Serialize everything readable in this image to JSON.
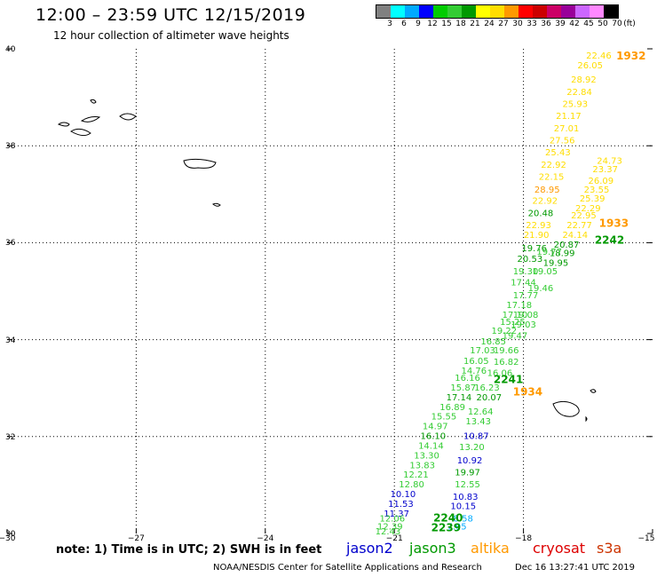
{
  "header": {
    "title": "12:00 – 23:59 UTC 12/15/2019",
    "subtitle": "12 hour collection of altimeter wave heights"
  },
  "colorbar": {
    "unit": "(ft)",
    "bins": [
      {
        "label": "3",
        "color": "#808080"
      },
      {
        "label": "6",
        "color": "#00ffff"
      },
      {
        "label": "9",
        "color": "#00aaff"
      },
      {
        "label": "12",
        "color": "#0000ff"
      },
      {
        "label": "15",
        "color": "#00cc00"
      },
      {
        "label": "18",
        "color": "#33cc33"
      },
      {
        "label": "21",
        "color": "#009900"
      },
      {
        "label": "24",
        "color": "#ffff00"
      },
      {
        "label": "27",
        "color": "#ffdd00"
      },
      {
        "label": "30",
        "color": "#ff9900"
      },
      {
        "label": "33",
        "color": "#ff0000"
      },
      {
        "label": "36",
        "color": "#cc0000"
      },
      {
        "label": "39",
        "color": "#cc0066"
      },
      {
        "label": "42",
        "color": "#990099"
      },
      {
        "label": "45",
        "color": "#cc66ff"
      },
      {
        "label": "50",
        "color": "#ff88ff"
      },
      {
        "label": "70",
        "color": "#000000"
      }
    ]
  },
  "axes": {
    "lat_labels": [
      "40",
      "38",
      "36",
      "34",
      "32",
      "30"
    ],
    "lon_labels": [
      "−30",
      "−27",
      "−24",
      "−21",
      "−18",
      "−15"
    ]
  },
  "colors": {
    "jason2": "#0000cc",
    "jason3": "#009900",
    "altika": "#ff9900",
    "cryosat": "#dd0000",
    "s3a": "#cc3300",
    "grid": "#000000",
    "land": "#000000"
  },
  "track_labels": [
    {
      "text": "1932",
      "color": "#ff9900",
      "lat": 39.78,
      "lon": -15.5
    },
    {
      "text": "1933",
      "color": "#ff9900",
      "lat": 36.33,
      "lon": -15.9
    },
    {
      "text": "2242",
      "color": "#009900",
      "lat": 35.98,
      "lon": -16.0
    },
    {
      "text": "2241",
      "color": "#009900",
      "lat": 33.1,
      "lon": -18.35
    },
    {
      "text": "1934",
      "color": "#ff9900",
      "lat": 32.85,
      "lon": -17.9
    },
    {
      "text": "2240",
      "color": "#009900",
      "lat": 30.25,
      "lon": -19.75
    },
    {
      "text": "2239",
      "color": "#009900",
      "lat": 30.05,
      "lon": -19.8
    }
  ],
  "wave_heights": [
    {
      "value": "22.46",
      "color": "#ffdd00",
      "lat": 39.8,
      "lon": -16.25
    },
    {
      "value": "26.05",
      "color": "#ffdd00",
      "lat": 39.6,
      "lon": -16.45
    },
    {
      "value": "28.92",
      "color": "#ffdd00",
      "lat": 39.3,
      "lon": -16.6
    },
    {
      "value": "22.84",
      "color": "#ffdd00",
      "lat": 39.05,
      "lon": -16.7
    },
    {
      "value": "25.93",
      "color": "#ffdd00",
      "lat": 38.8,
      "lon": -16.8
    },
    {
      "value": "21.17",
      "color": "#ffdd00",
      "lat": 38.55,
      "lon": -16.95
    },
    {
      "value": "27.01",
      "color": "#ffdd00",
      "lat": 38.3,
      "lon": -17.0
    },
    {
      "value": "27.56",
      "color": "#ffdd00",
      "lat": 38.05,
      "lon": -17.1
    },
    {
      "value": "25.43",
      "color": "#ffdd00",
      "lat": 37.8,
      "lon": -17.2
    },
    {
      "value": "24.73",
      "color": "#ffdd00",
      "lat": 37.63,
      "lon": -16.0
    },
    {
      "value": "22.92",
      "color": "#ffdd00",
      "lat": 37.55,
      "lon": -17.3
    },
    {
      "value": "23.37",
      "color": "#ffdd00",
      "lat": 37.45,
      "lon": -16.1
    },
    {
      "value": "22.15",
      "color": "#ffdd00",
      "lat": 37.3,
      "lon": -17.35
    },
    {
      "value": "26.09",
      "color": "#ffdd00",
      "lat": 37.22,
      "lon": -16.2
    },
    {
      "value": "28.95",
      "color": "#ff9900",
      "lat": 37.03,
      "lon": -17.45
    },
    {
      "value": "23.55",
      "color": "#ffdd00",
      "lat": 37.03,
      "lon": -16.3
    },
    {
      "value": "25.39",
      "color": "#ffdd00",
      "lat": 36.85,
      "lon": -16.4
    },
    {
      "value": "22.92",
      "color": "#ffdd00",
      "lat": 36.8,
      "lon": -17.5
    },
    {
      "value": "22.29",
      "color": "#ffdd00",
      "lat": 36.65,
      "lon": -16.5
    },
    {
      "value": "20.48",
      "color": "#009900",
      "lat": 36.55,
      "lon": -17.6
    },
    {
      "value": "22.95",
      "color": "#ffdd00",
      "lat": 36.5,
      "lon": -16.6
    },
    {
      "value": "22.93",
      "color": "#ffdd00",
      "lat": 36.3,
      "lon": -17.65
    },
    {
      "value": "22.77",
      "color": "#ffdd00",
      "lat": 36.3,
      "lon": -16.7
    },
    {
      "value": "21.90",
      "color": "#ffdd00",
      "lat": 36.1,
      "lon": -17.7
    },
    {
      "value": "24.14",
      "color": "#ffdd00",
      "lat": 36.1,
      "lon": -16.8
    },
    {
      "value": "20.87",
      "color": "#009900",
      "lat": 35.9,
      "lon": -17.0
    },
    {
      "value": "19.76",
      "color": "#009900",
      "lat": 35.82,
      "lon": -17.75
    },
    {
      "value": "18.99",
      "color": "#009900",
      "lat": 35.72,
      "lon": -17.1
    },
    {
      "value": "20.53",
      "color": "#009900",
      "lat": 35.6,
      "lon": -17.85
    },
    {
      "value": "19.77",
      "color": "#33cc33",
      "lat": 35.75,
      "lon": -17.4
    },
    {
      "value": "19.95",
      "color": "#009900",
      "lat": 35.52,
      "lon": -17.25
    },
    {
      "value": "19.30",
      "color": "#33cc33",
      "lat": 35.35,
      "lon": -17.95
    },
    {
      "value": "19.05",
      "color": "#33cc33",
      "lat": 35.35,
      "lon": -17.5
    },
    {
      "value": "17.44",
      "color": "#33cc33",
      "lat": 35.12,
      "lon": -18.0
    },
    {
      "value": "19.46",
      "color": "#33cc33",
      "lat": 35.0,
      "lon": -17.6
    },
    {
      "value": "17.77",
      "color": "#33cc33",
      "lat": 34.85,
      "lon": -17.95
    },
    {
      "value": "17.18",
      "color": "#33cc33",
      "lat": 34.65,
      "lon": -18.1
    },
    {
      "value": "17.10",
      "color": "#33cc33",
      "lat": 34.45,
      "lon": -18.2
    },
    {
      "value": "19.08",
      "color": "#33cc33",
      "lat": 34.45,
      "lon": -17.95
    },
    {
      "value": "15.25",
      "color": "#33cc33",
      "lat": 34.3,
      "lon": -18.25
    },
    {
      "value": "19.03",
      "color": "#33cc33",
      "lat": 34.25,
      "lon": -18.0
    },
    {
      "value": "19.22",
      "color": "#33cc33",
      "lat": 34.12,
      "lon": -18.45
    },
    {
      "value": "19.47",
      "color": "#33cc33",
      "lat": 34.02,
      "lon": -18.2
    },
    {
      "value": "16.85",
      "color": "#33cc33",
      "lat": 33.9,
      "lon": -18.7
    },
    {
      "value": "17.03",
      "color": "#33cc33",
      "lat": 33.72,
      "lon": -18.95
    },
    {
      "value": "19.66",
      "color": "#33cc33",
      "lat": 33.72,
      "lon": -18.4
    },
    {
      "value": "16.05",
      "color": "#33cc33",
      "lat": 33.5,
      "lon": -19.1
    },
    {
      "value": "16.82",
      "color": "#33cc33",
      "lat": 33.48,
      "lon": -18.4
    },
    {
      "value": "14.76",
      "color": "#33cc33",
      "lat": 33.3,
      "lon": -19.15
    },
    {
      "value": "16.06",
      "color": "#33cc33",
      "lat": 33.25,
      "lon": -18.55
    },
    {
      "value": "16.16",
      "color": "#33cc33",
      "lat": 33.15,
      "lon": -19.3
    },
    {
      "value": "15.87",
      "color": "#33cc33",
      "lat": 32.95,
      "lon": -19.4
    },
    {
      "value": "16.23",
      "color": "#33cc33",
      "lat": 32.95,
      "lon": -18.85
    },
    {
      "value": "17.14",
      "color": "#009900",
      "lat": 32.75,
      "lon": -19.5
    },
    {
      "value": "20.07",
      "color": "#009900",
      "lat": 32.75,
      "lon": -18.8
    },
    {
      "value": "16.89",
      "color": "#33cc33",
      "lat": 32.55,
      "lon": -19.65
    },
    {
      "value": "12.64",
      "color": "#33cc33",
      "lat": 32.45,
      "lon": -19.0
    },
    {
      "value": "15.55",
      "color": "#33cc33",
      "lat": 32.35,
      "lon": -19.85
    },
    {
      "value": "13.43",
      "color": "#33cc33",
      "lat": 32.25,
      "lon": -19.05
    },
    {
      "value": "14.97",
      "color": "#33cc33",
      "lat": 32.15,
      "lon": -20.05
    },
    {
      "value": "16.10",
      "color": "#009900",
      "lat": 31.95,
      "lon": -20.1
    },
    {
      "value": "10.87",
      "color": "#0000cc",
      "lat": 31.95,
      "lon": -19.1
    },
    {
      "value": "14.14",
      "color": "#33cc33",
      "lat": 31.75,
      "lon": -20.15
    },
    {
      "value": "13.20",
      "color": "#33cc33",
      "lat": 31.72,
      "lon": -19.2
    },
    {
      "value": "13.30",
      "color": "#33cc33",
      "lat": 31.55,
      "lon": -20.25
    },
    {
      "value": "13.83",
      "color": "#33cc33",
      "lat": 31.35,
      "lon": -20.35
    },
    {
      "value": "10.92",
      "color": "#0000cc",
      "lat": 31.45,
      "lon": -19.25
    },
    {
      "value": "12.21",
      "color": "#33cc33",
      "lat": 31.15,
      "lon": -20.5
    },
    {
      "value": "19.97",
      "color": "#009900",
      "lat": 31.2,
      "lon": -19.3
    },
    {
      "value": "12.80",
      "color": "#33cc33",
      "lat": 30.95,
      "lon": -20.6
    },
    {
      "value": "12.55",
      "color": "#33cc33",
      "lat": 30.95,
      "lon": -19.3
    },
    {
      "value": "10.10",
      "color": "#0000cc",
      "lat": 30.75,
      "lon": -20.8
    },
    {
      "value": "10.83",
      "color": "#0000cc",
      "lat": 30.7,
      "lon": -19.35
    },
    {
      "value": "11.53",
      "color": "#0000cc",
      "lat": 30.55,
      "lon": -20.85
    },
    {
      "value": "10.15",
      "color": "#0000cc",
      "lat": 30.5,
      "lon": -19.4
    },
    {
      "value": "11.37",
      "color": "#0000cc",
      "lat": 30.35,
      "lon": -20.95
    },
    {
      "value": "8.58",
      "color": "#00aaff",
      "lat": 30.25,
      "lon": -19.4
    },
    {
      "value": "12.06",
      "color": "#33cc33",
      "lat": 30.25,
      "lon": -21.05
    },
    {
      "value": "12.39",
      "color": "#33cc33",
      "lat": 30.08,
      "lon": -21.1
    },
    {
      "value": "7.95",
      "color": "#00aaff",
      "lat": 30.08,
      "lon": -19.55
    },
    {
      "value": "12.43",
      "color": "#33cc33",
      "lat": 29.98,
      "lon": -21.15
    }
  ],
  "footer": {
    "note": "note:  1) Time is in UTC;  2) SWH is in feet",
    "legend": [
      {
        "key": "jason2",
        "label": "jason2"
      },
      {
        "key": "jason3",
        "label": "jason3"
      },
      {
        "key": "altika",
        "label": "altika"
      },
      {
        "key": "cryosat",
        "label": "cryosat"
      },
      {
        "key": "s3a",
        "label": "s3a"
      }
    ],
    "credit": "NOAA/NESDIS Center for Satellite Applications and Research",
    "timestamp": "Dec 16 13:27:41 UTC 2019"
  }
}
